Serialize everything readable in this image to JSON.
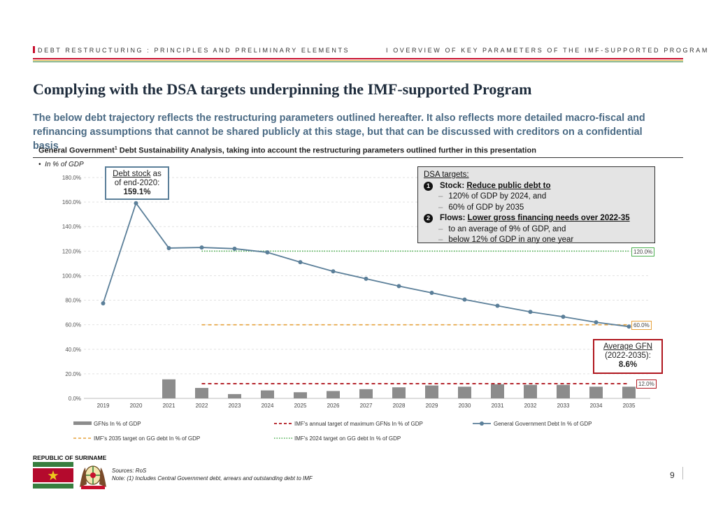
{
  "header": {
    "left": "DEBT RESTRUCTURING : PRINCIPLES AND PRELIMINARY ELEMENTS",
    "right": "I    OVERVIEW OF KEY PARAMETERS OF THE IMF-SUPPORTED PROGRAM"
  },
  "title": "Complying with the DSA targets underpinning the IMF-supported Program",
  "subtitle": "The below debt trajectory reflects the restructuring parameters outlined hereafter. It also reflects more detailed macro-fiscal and refinancing assumptions that cannot be shared publicly at this stage, but that can be discussed with creditors on a confidential basis",
  "chart_header": {
    "pre": "General Government",
    "sup": "1",
    "post": " Debt Sustainability Analysis, taking into account the restructuring parameters outlined further in this presentation"
  },
  "unit_note": "In % of GDP",
  "targets_box": {
    "heading": "DSA targets:",
    "n1": "1",
    "stock_prefix": "Stock: ",
    "stock_underlined": "Reduce public debt to",
    "stock_items": [
      "120% of GDP by 2024, and",
      "60% of GDP by 2035"
    ],
    "n2": "2",
    "flows_prefix": "Flows: ",
    "flows_underlined": "Lower gross financing needs over 2022-35",
    "flows_items": [
      "to an average of 9% of GDP, and",
      "below 12% of GDP in any one year"
    ]
  },
  "debt_callout": {
    "line1a": "Debt stock",
    "line1b": " as",
    "line2": "of end-2020:",
    "value": "159.1%"
  },
  "gfn_callout": {
    "line1": "Average GFN",
    "line2": "(2022-2035):",
    "value": "8.6%"
  },
  "ref_labels": {
    "l120": "120.0%",
    "l60": "60.0%",
    "l12": "12.0%"
  },
  "legend": {
    "gfn": "GFNs   In % of GDP",
    "imf_gfn": "IMF's annual target of maximum GFNs  In % of GDP",
    "ggdebt": "General Government Debt   In % of GDP",
    "t2035": "IMF's 2035 target on GG debt  In % of GDP",
    "t2024": "IMF's 2024 target on GG debt  In % of GDP"
  },
  "footer": {
    "country": "REPUBLIC OF SURINAME",
    "sources": "Sources: RoS",
    "note": "Note: (1) Includes Central Government debt, arrears and outstanding debt to IMF",
    "page": "9"
  },
  "colors": {
    "debt_line": "#5b7f99",
    "bars": "#8c8c8c",
    "gfn_target": "#b0171f",
    "t2035": "#e6a23c",
    "t2024": "#4caf50",
    "accent_red": "#c8102e"
  },
  "chart_data": {
    "type": "bar+line",
    "categories": [
      "2019",
      "2020",
      "2021",
      "2022",
      "2023",
      "2024",
      "2025",
      "2026",
      "2027",
      "2028",
      "2029",
      "2030",
      "2031",
      "2032",
      "2033",
      "2034",
      "2035"
    ],
    "ylim": [
      0,
      180
    ],
    "yticks": [
      "0.0%",
      "20.0%",
      "40.0%",
      "60.0%",
      "80.0%",
      "100.0%",
      "120.0%",
      "140.0%",
      "160.0%",
      "180.0%"
    ],
    "series": [
      {
        "name": "GFNs   In % of GDP",
        "type": "bar",
        "values": [
          null,
          null,
          15.5,
          8.5,
          3.5,
          6.5,
          5.0,
          6.0,
          7.5,
          9.0,
          10.5,
          9.5,
          11.5,
          11.0,
          11.0,
          9.5,
          9.5
        ]
      },
      {
        "name": "General Government Debt   In % of GDP",
        "type": "line",
        "values": [
          77.5,
          159.1,
          122.5,
          123.0,
          122.0,
          119.0,
          111.0,
          103.5,
          97.5,
          91.5,
          86.0,
          80.5,
          75.5,
          70.5,
          66.5,
          62.0,
          58.5
        ]
      },
      {
        "name": "IMF's annual target of maximum GFNs  In % of GDP",
        "type": "ref",
        "from": "2022",
        "to": "2035",
        "value": 12
      },
      {
        "name": "IMF's 2035 target on GG debt  In % of GDP",
        "type": "ref",
        "from": "2022",
        "to": "2035",
        "value": 60
      },
      {
        "name": "IMF's 2024 target on GG debt  In % of GDP",
        "type": "ref",
        "from": "2022",
        "to": "2035",
        "value": 120
      }
    ],
    "grid": true,
    "legend_position": "bottom"
  }
}
